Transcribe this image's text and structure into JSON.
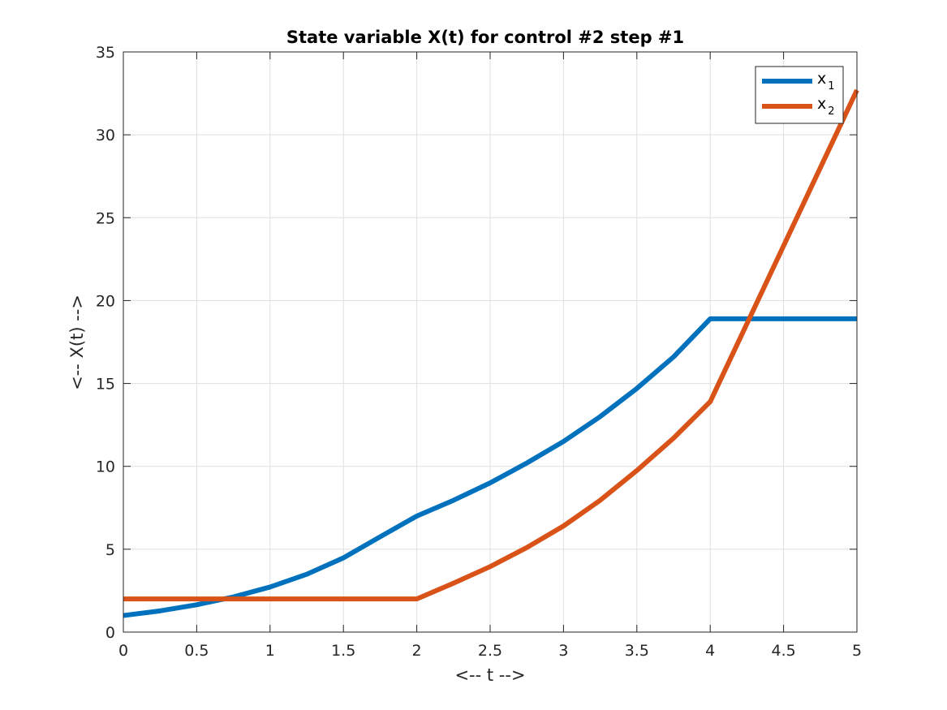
{
  "chart_data": {
    "type": "line",
    "title": "State variable X(t) for control #2 step #1",
    "xlabel": "<-- t -->",
    "ylabel": "<-- X(t) -->",
    "xlim": [
      0,
      5
    ],
    "ylim": [
      0,
      35
    ],
    "xticks": [
      0,
      0.5,
      1,
      1.5,
      2,
      2.5,
      3,
      3.5,
      4,
      4.5,
      5
    ],
    "xtick_labels": [
      "0",
      "0.5",
      "1",
      "1.5",
      "2",
      "2.5",
      "3",
      "3.5",
      "4",
      "4.5",
      "5"
    ],
    "yticks": [
      0,
      5,
      10,
      15,
      20,
      25,
      30,
      35
    ],
    "ytick_labels": [
      "0",
      "5",
      "10",
      "15",
      "20",
      "25",
      "30",
      "35"
    ],
    "grid": true,
    "legend_position": "top-right",
    "series": [
      {
        "name": "x",
        "subscript": "1",
        "color": "#0072BD",
        "x": [
          0,
          0.25,
          0.5,
          0.75,
          1,
          1.25,
          1.5,
          1.75,
          2,
          2.25,
          2.5,
          2.75,
          3,
          3.25,
          3.5,
          3.75,
          4,
          4.5,
          5
        ],
        "y": [
          1.0,
          1.28,
          1.65,
          2.12,
          2.72,
          3.49,
          4.48,
          5.75,
          7.0,
          7.95,
          9.0,
          10.2,
          11.5,
          13.0,
          14.7,
          16.6,
          18.9,
          18.9,
          18.9
        ]
      },
      {
        "name": "x",
        "subscript": "2",
        "color": "#D95319",
        "x": [
          0,
          0.5,
          1,
          1.5,
          2,
          2.25,
          2.5,
          2.75,
          3,
          3.25,
          3.5,
          3.75,
          4,
          4.5,
          5
        ],
        "y": [
          2,
          2,
          2,
          2,
          2,
          2.95,
          3.95,
          5.1,
          6.4,
          7.95,
          9.75,
          11.7,
          13.9,
          23.3,
          32.7
        ]
      }
    ]
  }
}
